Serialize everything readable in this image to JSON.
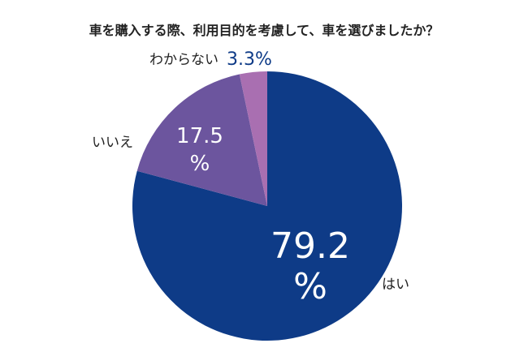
{
  "chart_data": {
    "type": "pie",
    "title": "車を購入する際、利用目的を考慮して、車を選びましたか？",
    "slices": [
      {
        "label": "はい",
        "value": 79.2,
        "value_text": "79.2",
        "unit": "%",
        "color": "#0e3b87"
      },
      {
        "label": "いいえ",
        "value": 17.5,
        "value_text": "17.5",
        "unit": "%",
        "color": "#6c559e"
      },
      {
        "label": "わからない",
        "value": 3.3,
        "value_text": "3.3%",
        "unit": "",
        "color": "#a96fb1"
      }
    ],
    "start_angle": "12 o'clock",
    "direction": "clockwise",
    "legend": "none"
  },
  "colors": {
    "outer_value_text": "#0e3b87",
    "label_text": "#222222",
    "inner_text": "#ffffff"
  }
}
